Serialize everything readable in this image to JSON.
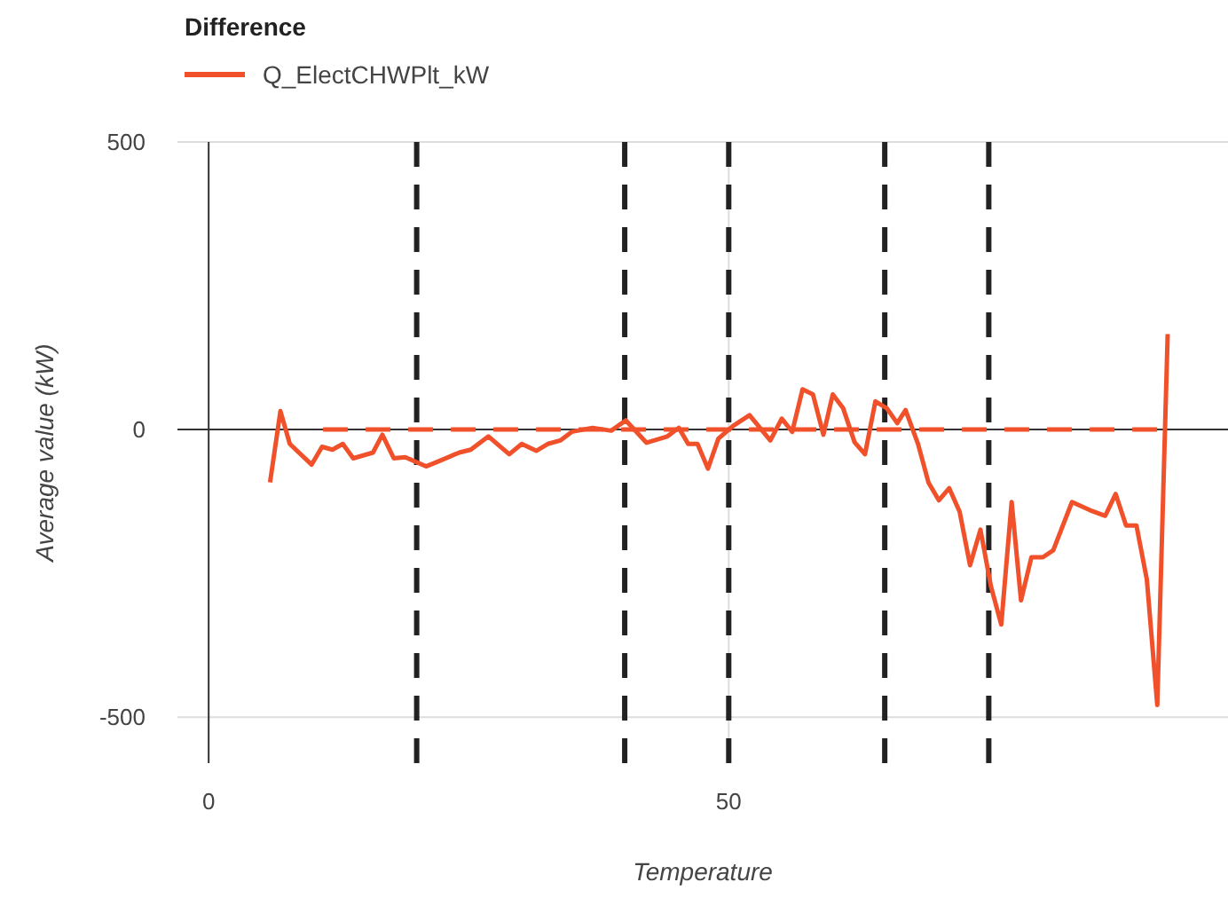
{
  "chart_data": {
    "type": "line",
    "xlabel": "Temperature",
    "ylabel": "Average value (kW)",
    "legend_title": "Difference",
    "legend": "top left",
    "grid": true,
    "marker": "none",
    "xlim": [
      -3,
      98
    ],
    "ylim": [
      -580,
      500
    ],
    "xticks": [
      0,
      50
    ],
    "yticks": [
      -500,
      0,
      500
    ],
    "series": [
      {
        "name": "Q_ElectCHWPlt_kW",
        "color": "#f0502a",
        "line_style": "solid",
        "x": [
          5.9,
          6.9,
          7.8,
          9.9,
          10.9,
          11.9,
          12.9,
          13.9,
          15.8,
          16.7,
          17.8,
          18.9,
          20.9,
          22.0,
          24.1,
          25.2,
          26.9,
          28.9,
          30.1,
          31.5,
          32.6,
          33.8,
          34.9,
          36.9,
          38.7,
          40.1,
          42.1,
          44.1,
          45.2,
          46.1,
          47.0,
          48.0,
          49.0,
          50.4,
          52.0,
          54.0,
          55.1,
          56.1,
          57.1,
          58.1,
          59.1,
          60.0,
          61.0,
          62.1,
          63.1,
          64.1,
          65.2,
          66.2,
          67.0,
          68.2,
          69.2,
          70.2,
          71.2,
          72.2,
          73.2,
          74.2,
          75.2,
          76.2,
          77.2,
          78.1,
          79.1,
          80.2,
          81.2,
          83.0,
          84.7,
          86.2,
          87.2,
          88.2,
          89.2,
          90.2,
          91.2,
          92.2
        ],
        "values": [
          -92,
          32,
          -25,
          -61,
          -30,
          -35,
          -25,
          -50,
          -40,
          -9,
          -50,
          -48,
          -64,
          -56,
          -40,
          -35,
          -12,
          -43,
          -25,
          -37,
          -25,
          -19,
          -4,
          3,
          -2,
          16,
          -23,
          -12,
          3,
          -25,
          -25,
          -68,
          -16,
          6,
          25,
          -19,
          19,
          -4,
          70,
          61,
          -9,
          61,
          37,
          -22,
          -43,
          49,
          37,
          11,
          34,
          -25,
          -92,
          -123,
          -102,
          -143,
          -236,
          -174,
          -272,
          -339,
          -126,
          -297,
          -222,
          -222,
          -210,
          -126,
          -140,
          -150,
          -112,
          -167,
          -167,
          -261,
          -479,
          166
        ]
      },
      {
        "color": "#f0502a",
        "line_style": "dashed",
        "x": [
          11,
          92
        ],
        "values": [
          0,
          0
        ]
      }
    ],
    "ref_lines": [
      {
        "axis": "x",
        "value": 20,
        "color": "#222222",
        "line_style": "dashed"
      },
      {
        "axis": "x",
        "value": 40,
        "color": "#222222",
        "line_style": "dashed"
      },
      {
        "axis": "x",
        "value": 50,
        "color": "#222222",
        "line_style": "dashed"
      },
      {
        "axis": "x",
        "value": 65,
        "color": "#222222",
        "line_style": "dashed"
      },
      {
        "axis": "x",
        "value": 75,
        "color": "#222222",
        "line_style": "dashed"
      }
    ]
  }
}
